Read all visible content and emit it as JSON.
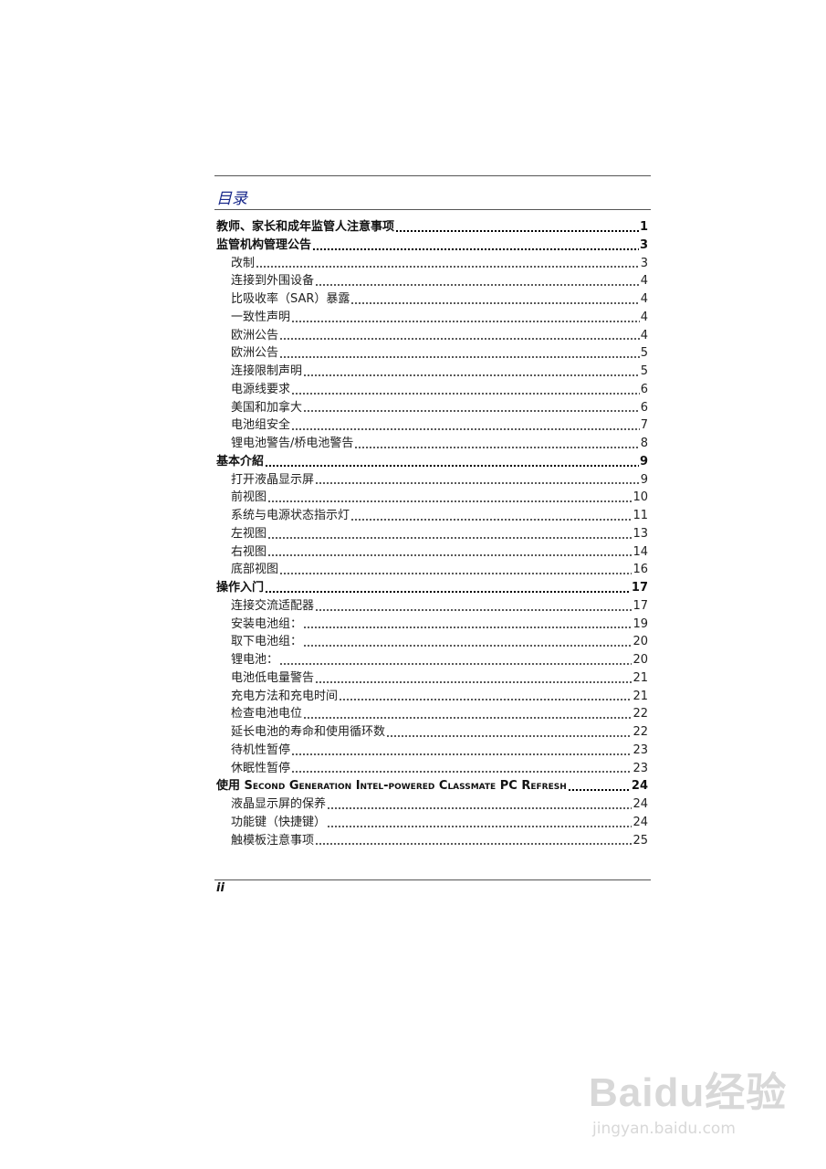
{
  "title": "目录",
  "entries": [
    {
      "level": 1,
      "label": "教师、家长和成年监管人注意事项",
      "page": "1"
    },
    {
      "level": 1,
      "label": "监管机构管理公告",
      "page": "3"
    },
    {
      "level": 2,
      "label": "改制",
      "page": "3"
    },
    {
      "level": 2,
      "label": "连接到外围设备",
      "page": "4"
    },
    {
      "level": 2,
      "label": "比吸收率（SAR）暴露",
      "page": "4"
    },
    {
      "level": 2,
      "label": "一致性声明",
      "page": "4"
    },
    {
      "level": 2,
      "label": "欧洲公告",
      "page": "4"
    },
    {
      "level": 2,
      "label": "欧洲公告",
      "page": "5"
    },
    {
      "level": 2,
      "label": "连接限制声明",
      "page": "5"
    },
    {
      "level": 2,
      "label": "电源线要求",
      "page": "6"
    },
    {
      "level": 2,
      "label": "美国和加拿大",
      "page": "6"
    },
    {
      "level": 2,
      "label": "电池组安全",
      "page": "7"
    },
    {
      "level": 2,
      "label": "锂电池警告/桥电池警告",
      "page": "8"
    },
    {
      "level": 1,
      "label": "基本介紹",
      "page": "9"
    },
    {
      "level": 2,
      "label": "打开液晶显示屏",
      "page": "9"
    },
    {
      "level": 2,
      "label": "前视图",
      "page": "10"
    },
    {
      "level": 2,
      "label": "系统与电源状态指示灯",
      "page": "11"
    },
    {
      "level": 2,
      "label": "左视图",
      "page": "13"
    },
    {
      "level": 2,
      "label": "右视图",
      "page": "14"
    },
    {
      "level": 2,
      "label": "底部视图",
      "page": "16"
    },
    {
      "level": 1,
      "label": "操作入门",
      "page": "17"
    },
    {
      "level": 2,
      "label": "连接交流适配器",
      "page": "17"
    },
    {
      "level": 2,
      "label": "安装电池组：",
      "page": "19"
    },
    {
      "level": 2,
      "label": "取下电池组：",
      "page": "20"
    },
    {
      "level": 2,
      "label": "锂电池：",
      "page": "20"
    },
    {
      "level": 2,
      "label": "电池低电量警告",
      "page": "21"
    },
    {
      "level": 2,
      "label": "充电方法和充电时间",
      "page": "21"
    },
    {
      "level": 2,
      "label": "检查电池电位",
      "page": "22"
    },
    {
      "level": 2,
      "label": "延长电池的寿命和使用循环数",
      "page": "22"
    },
    {
      "level": 2,
      "label": "待机性暂停",
      "page": "23"
    },
    {
      "level": 2,
      "label": "休眠性暂停",
      "page": "23"
    },
    {
      "level": 1,
      "label": "使用 Second Generation Intel-powered  Classmate PC Refresh",
      "page": "24",
      "smallcaps": true
    },
    {
      "level": 2,
      "label": "液晶显示屏的保养",
      "page": "24"
    },
    {
      "level": 2,
      "label": "功能键（快捷键）",
      "page": "24"
    },
    {
      "level": 2,
      "label": "触模板注意事项",
      "page": "25"
    }
  ],
  "footer": {
    "page_label": "ii"
  },
  "watermark": {
    "brand": "Baidu经验",
    "url": "jingyan.baidu.com"
  }
}
